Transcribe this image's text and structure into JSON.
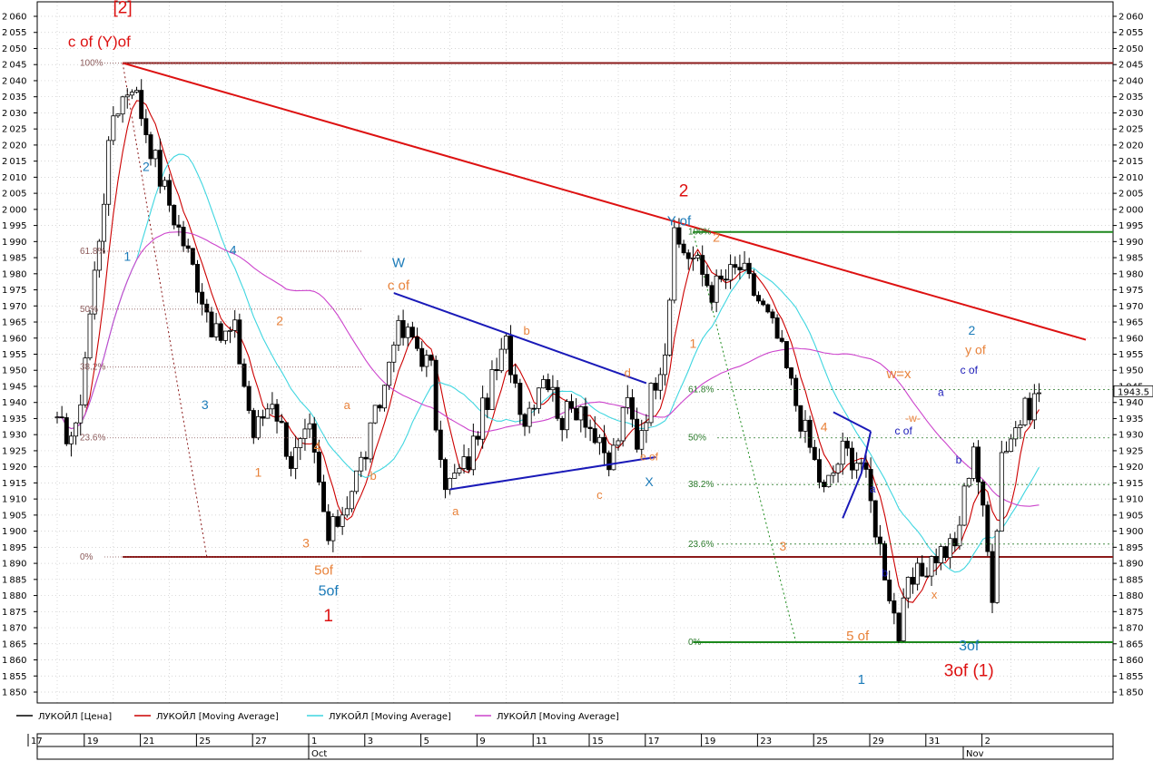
{
  "chart_data": {
    "type": "candlestick",
    "y_axis": {
      "min": 1850,
      "max": 2060,
      "step": 5,
      "position": "both sides"
    },
    "x_axis": {
      "day_ticks": [
        {
          "label": "17",
          "slot": 0
        },
        {
          "label": "19",
          "slot": 6
        },
        {
          "label": "21",
          "slot": 12
        },
        {
          "label": "25",
          "slot": 18
        },
        {
          "label": "27",
          "slot": 24
        },
        {
          "label": "1",
          "slot": 30
        },
        {
          "label": "3",
          "slot": 36
        },
        {
          "label": "5",
          "slot": 42
        },
        {
          "label": "9",
          "slot": 48
        },
        {
          "label": "11",
          "slot": 54
        },
        {
          "label": "15",
          "slot": 60
        },
        {
          "label": "17",
          "slot": 66
        },
        {
          "label": "19",
          "slot": 72
        },
        {
          "label": "23",
          "slot": 78
        },
        {
          "label": "25",
          "slot": 84
        },
        {
          "label": "29",
          "slot": 90
        },
        {
          "label": "31",
          "slot": 96
        },
        {
          "label": "2",
          "slot": 102
        }
      ],
      "month_ticks": [
        {
          "label": "Oct",
          "slot": 30
        },
        {
          "label": "Nov",
          "slot": 100
        }
      ],
      "total_slots": 110
    },
    "price": {
      "name": "ЛУКОЙЛ [Цена]",
      "color": "#000000"
    },
    "close_anchors": [
      [
        0,
        1932
      ],
      [
        2,
        1930
      ],
      [
        6,
        2030
      ],
      [
        8,
        2040
      ],
      [
        11,
        2010
      ],
      [
        15,
        1978
      ],
      [
        17,
        1960
      ],
      [
        19,
        1962
      ],
      [
        21,
        1930
      ],
      [
        23,
        1942
      ],
      [
        25,
        1922
      ],
      [
        27,
        1930
      ],
      [
        29,
        1897
      ],
      [
        31,
        1910
      ],
      [
        33,
        1925
      ],
      [
        35,
        1945
      ],
      [
        36,
        1962
      ],
      [
        38,
        1960
      ],
      [
        40,
        1950
      ],
      [
        41,
        1918
      ],
      [
        42,
        1915
      ],
      [
        44,
        1922
      ],
      [
        46,
        1942
      ],
      [
        48,
        1958
      ],
      [
        50,
        1935
      ],
      [
        52,
        1950
      ],
      [
        54,
        1935
      ],
      [
        56,
        1940
      ],
      [
        58,
        1925
      ],
      [
        59,
        1920
      ],
      [
        61,
        1940
      ],
      [
        62,
        1928
      ],
      [
        65,
        1958
      ],
      [
        66,
        1990
      ],
      [
        68,
        1985
      ],
      [
        70,
        1975
      ],
      [
        73,
        1982
      ],
      [
        75,
        1972
      ],
      [
        77,
        1960
      ],
      [
        79,
        1940
      ],
      [
        82,
        1912
      ],
      [
        84,
        1925
      ],
      [
        86,
        1922
      ],
      [
        88,
        1895
      ],
      [
        90,
        1868
      ],
      [
        91,
        1882
      ],
      [
        94,
        1893
      ],
      [
        96,
        1895
      ],
      [
        98,
        1928
      ],
      [
        100,
        1882
      ],
      [
        101,
        1925
      ],
      [
        103,
        1935
      ],
      [
        105,
        1943
      ]
    ],
    "last_value": "1943.5",
    "series": [
      {
        "name": "ЛУКОЙЛ [Moving Average]",
        "color": "#cc0000",
        "period": 3
      },
      {
        "name": "ЛУКОЙЛ [Moving Average]",
        "color": "#3fd6e0",
        "period": 9
      },
      {
        "name": "ЛУКОЙЛ [Moving Average]",
        "color": "#cc44cc",
        "period": 25
      }
    ],
    "horizontal_lines": [
      {
        "y": 2045.5,
        "color": "#8b1a1a",
        "from_slot": 7
      },
      {
        "y": 1892.0,
        "color": "#8b1a1a",
        "from_slot": 7
      },
      {
        "y": 1993.0,
        "color": "#1a8a1a",
        "from_slot": 68
      },
      {
        "y": 1865.5,
        "color": "#1a8a1a",
        "from_slot": 68
      }
    ],
    "fib_left": [
      {
        "label": "100%",
        "y": 2045.5
      },
      {
        "label": "61.8%",
        "y": 1987
      },
      {
        "label": "50%",
        "y": 1969
      },
      {
        "label": "38.2%",
        "y": 1951
      },
      {
        "label": "23.6%",
        "y": 1929
      },
      {
        "label": "0%",
        "y": 1892
      }
    ],
    "fib_right": [
      {
        "label": "100%",
        "y": 1993
      },
      {
        "label": "61.8%",
        "y": 1944
      },
      {
        "label": "50%",
        "y": 1929
      },
      {
        "label": "38.2%",
        "y": 1914.5
      },
      {
        "label": "23.6%",
        "y": 1896
      },
      {
        "label": "0%",
        "y": 1865.5
      }
    ],
    "trend_lines": [
      {
        "color": "#dd1111",
        "width": 2,
        "from": [
          7,
          2045.5
        ],
        "to": [
          110,
          1959.5
        ]
      },
      {
        "color": "#1a1ab8",
        "width": 2,
        "from": [
          36,
          1974
        ],
        "to": [
          63,
          1946
        ]
      },
      {
        "color": "#1a1ab8",
        "width": 2,
        "from": [
          42,
          1913
        ],
        "to": [
          64,
          1923
        ]
      },
      {
        "color": "#1a1ab8",
        "width": 2,
        "from": [
          83,
          1937
        ],
        "to": [
          87,
          1931
        ]
      },
      {
        "color": "#1a1ab8",
        "width": 2,
        "from": [
          87,
          1931
        ],
        "to": [
          86,
          1918
        ]
      },
      {
        "color": "#1a1ab8",
        "width": 2,
        "from": [
          86,
          1918
        ],
        "to": [
          84,
          1904
        ]
      }
    ],
    "dotted_lines": [
      {
        "color": "#8b1a1a",
        "from": [
          7,
          2045.5
        ],
        "to": [
          16,
          1892
        ]
      },
      {
        "color": "#1a8a1a",
        "from": [
          68,
          1993
        ],
        "to": [
          79,
          1865.5
        ]
      }
    ],
    "annotations": [
      {
        "text": "[2]",
        "slot": 7,
        "y": 2061,
        "color": "#dd1111",
        "size": 19
      },
      {
        "text": "c of (Y)of",
        "slot": 4.5,
        "y": 2050.5,
        "color": "#dd1111",
        "size": 17
      },
      {
        "text": "2",
        "slot": 9.5,
        "y": 2012,
        "color": "#1a7ab8",
        "size": 14
      },
      {
        "text": "1",
        "slot": 7.5,
        "y": 1984,
        "color": "#1a7ab8",
        "size": 14
      },
      {
        "text": "4",
        "slot": 18.8,
        "y": 1986,
        "color": "#1a7ab8",
        "size": 14
      },
      {
        "text": "3",
        "slot": 15.8,
        "y": 1938,
        "color": "#1a7ab8",
        "size": 14
      },
      {
        "text": "2",
        "slot": 23.8,
        "y": 1964,
        "color": "#e8823a",
        "size": 14
      },
      {
        "text": "1",
        "slot": 21.5,
        "y": 1917,
        "color": "#e8823a",
        "size": 14
      },
      {
        "text": "a",
        "slot": 31,
        "y": 1938,
        "color": "#e8823a",
        "size": 13
      },
      {
        "text": "b",
        "slot": 33.8,
        "y": 1916,
        "color": "#e8823a",
        "size": 13
      },
      {
        "text": "4",
        "slot": 27.8,
        "y": 1925,
        "color": "#e8823a",
        "size": 14
      },
      {
        "text": "3",
        "slot": 26.6,
        "y": 1895,
        "color": "#e8823a",
        "size": 14
      },
      {
        "text": "5of",
        "slot": 28.5,
        "y": 1886.5,
        "color": "#e8823a",
        "size": 15
      },
      {
        "text": "5of",
        "slot": 29,
        "y": 1880,
        "color": "#1a7ab8",
        "size": 16
      },
      {
        "text": "1",
        "slot": 29,
        "y": 1872,
        "color": "#dd1111",
        "size": 19
      },
      {
        "text": "W",
        "slot": 36.5,
        "y": 1982,
        "color": "#1a7ab8",
        "size": 15
      },
      {
        "text": "c of",
        "slot": 36.5,
        "y": 1975,
        "color": "#e8823a",
        "size": 15
      },
      {
        "text": "b",
        "slot": 50.2,
        "y": 1961,
        "color": "#e8823a",
        "size": 13
      },
      {
        "text": "a",
        "slot": 42.6,
        "y": 1905,
        "color": "#e8823a",
        "size": 13
      },
      {
        "text": "c",
        "slot": 58,
        "y": 1910,
        "color": "#e8823a",
        "size": 13
      },
      {
        "text": "d",
        "slot": 61,
        "y": 1948,
        "color": "#e8823a",
        "size": 13
      },
      {
        "text": "e of",
        "slot": 63.3,
        "y": 1922,
        "color": "#e8823a",
        "size": 12
      },
      {
        "text": "X",
        "slot": 63.3,
        "y": 1914,
        "color": "#1a7ab8",
        "size": 14
      },
      {
        "text": "2",
        "slot": 67,
        "y": 2004,
        "color": "#dd1111",
        "size": 19
      },
      {
        "text": "Y of",
        "slot": 66.5,
        "y": 1995,
        "color": "#1a7ab8",
        "size": 15
      },
      {
        "text": "2",
        "slot": 70.5,
        "y": 1990,
        "color": "#e8823a",
        "size": 14
      },
      {
        "text": "1",
        "slot": 68,
        "y": 1957,
        "color": "#e8823a",
        "size": 14
      },
      {
        "text": "4",
        "slot": 82,
        "y": 1931,
        "color": "#e8823a",
        "size": 14
      },
      {
        "text": "3",
        "slot": 77.6,
        "y": 1894,
        "color": "#e8823a",
        "size": 14
      },
      {
        "text": "5 of",
        "slot": 85.6,
        "y": 1866,
        "color": "#e8823a",
        "size": 15
      },
      {
        "text": "1",
        "slot": 86,
        "y": 1852.5,
        "color": "#1a7ab8",
        "size": 15
      },
      {
        "text": "a",
        "slot": 87.2,
        "y": 1912,
        "color": "#1a1ab8",
        "size": 12
      },
      {
        "text": "b",
        "slot": 88.5,
        "y": 1886,
        "color": "#1a1ab8",
        "size": 12
      },
      {
        "text": "c of",
        "slot": 90.5,
        "y": 1930,
        "color": "#1a1ab8",
        "size": 12
      },
      {
        "text": "-w-",
        "slot": 91.5,
        "y": 1934,
        "color": "#e8823a",
        "size": 12
      },
      {
        "text": "x",
        "slot": 93.8,
        "y": 1879,
        "color": "#e8823a",
        "size": 13
      },
      {
        "text": "a",
        "slot": 94.5,
        "y": 1942,
        "color": "#1a1ab8",
        "size": 12
      },
      {
        "text": "b",
        "slot": 96.4,
        "y": 1921,
        "color": "#1a1ab8",
        "size": 12
      },
      {
        "text": "w=x",
        "slot": 90,
        "y": 1947.5,
        "color": "#e8823a",
        "size": 15
      },
      {
        "text": "2",
        "slot": 97.8,
        "y": 1961,
        "color": "#1a7ab8",
        "size": 14
      },
      {
        "text": "y of",
        "slot": 98.2,
        "y": 1955,
        "color": "#e8823a",
        "size": 14
      },
      {
        "text": "c of",
        "slot": 97.5,
        "y": 1949,
        "color": "#1a1ab8",
        "size": 12
      },
      {
        "text": "3of",
        "slot": 97.5,
        "y": 1863,
        "color": "#1a7ab8",
        "size": 16
      },
      {
        "text": "3of (1)",
        "slot": 97.5,
        "y": 1855,
        "color": "#dd1111",
        "size": 19
      }
    ],
    "legend": {
      "placement": "bottom",
      "entries": [
        {
          "text": "ЛУКОЙЛ [Цена]",
          "color": "#000000"
        },
        {
          "text": "ЛУКОЙЛ [Moving Average]",
          "color": "#cc0000"
        },
        {
          "text": "ЛУКОЙЛ [Moving Average]",
          "color": "#3fd6e0"
        },
        {
          "text": "ЛУКОЙЛ [Moving Average]",
          "color": "#cc44cc"
        }
      ]
    },
    "grid": true
  }
}
